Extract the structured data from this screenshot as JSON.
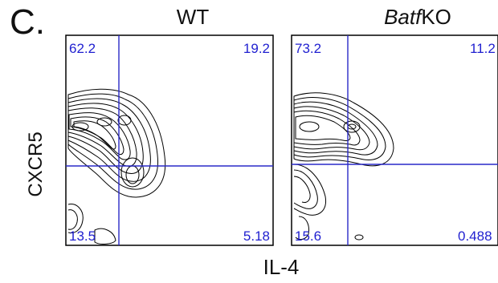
{
  "panel_letter": "C.",
  "y_axis_label": "CXCR5",
  "x_axis_label": "IL-4",
  "quadrant_color": "#2a2ac8",
  "chart_data": [
    {
      "type": "contour",
      "title": "WT",
      "xlabel": "IL-4",
      "ylabel": "CXCR5",
      "quadrants": {
        "top_left": "62.2",
        "top_right": "19.2",
        "bottom_left": "13.5",
        "bottom_right": "5.18"
      }
    },
    {
      "type": "contour",
      "title_italic": "Batf",
      "title_rest": "KO",
      "xlabel": "IL-4",
      "ylabel": "CXCR5",
      "quadrants": {
        "top_left": "73.2",
        "top_right": "11.2",
        "bottom_left": "15.6",
        "bottom_right": "0.488"
      }
    }
  ]
}
